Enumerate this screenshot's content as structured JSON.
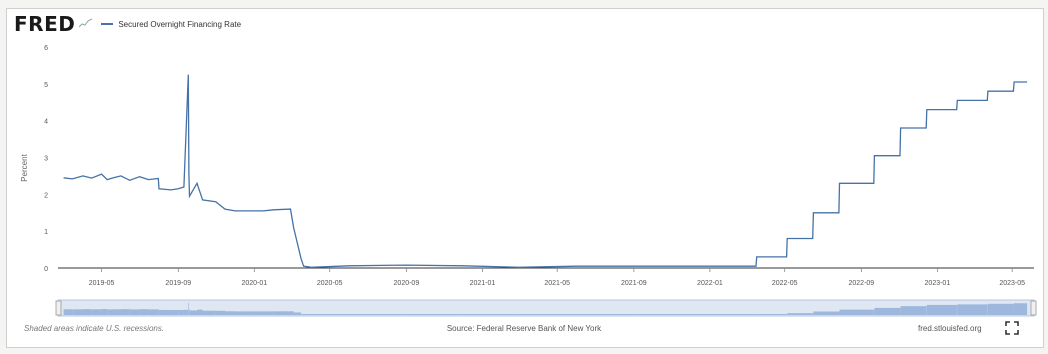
{
  "logo": {
    "text": "FRED"
  },
  "legend": {
    "series_label": "Secured Overnight Financing Rate"
  },
  "footer": {
    "recession_note": "Shaded areas indicate U.S. recessions.",
    "source": "Source: Federal Reserve Bank of New York",
    "site": "fred.stlouisfed.org"
  },
  "icons": {
    "graph": "graph-icon",
    "fullscreen": "fullscreen-icon"
  },
  "colors": {
    "series": "#4572a7",
    "navigator_fill": "#9db7dd",
    "navigator_window": "#c8d6ea"
  },
  "chart_data": {
    "type": "line",
    "ylabel": "Percent",
    "yticks": [
      0,
      1,
      2,
      3,
      4,
      5,
      6
    ],
    "ylim": [
      0,
      6
    ],
    "xticks": [
      "2019-05",
      "2019-09",
      "2020-01",
      "2020-05",
      "2020-09",
      "2021-01",
      "2021-05",
      "2021-09",
      "2022-01",
      "2022-05",
      "2022-09",
      "2023-01",
      "2023-05"
    ],
    "grid": false,
    "legend_position": "top-left",
    "series": [
      {
        "name": "Secured Overnight Financing Rate",
        "points": [
          [
            "2019-03-01",
            2.45
          ],
          [
            "2019-03-15",
            2.42
          ],
          [
            "2019-04-01",
            2.5
          ],
          [
            "2019-04-15",
            2.44
          ],
          [
            "2019-05-01",
            2.55
          ],
          [
            "2019-05-10",
            2.4
          ],
          [
            "2019-05-20",
            2.45
          ],
          [
            "2019-06-01",
            2.5
          ],
          [
            "2019-06-15",
            2.38
          ],
          [
            "2019-07-01",
            2.48
          ],
          [
            "2019-07-15",
            2.4
          ],
          [
            "2019-07-31",
            2.43
          ],
          [
            "2019-08-01",
            2.15
          ],
          [
            "2019-08-20",
            2.12
          ],
          [
            "2019-09-01",
            2.15
          ],
          [
            "2019-09-10",
            2.2
          ],
          [
            "2019-09-17",
            5.25
          ],
          [
            "2019-09-18",
            2.55
          ],
          [
            "2019-09-19",
            1.95
          ],
          [
            "2019-10-01",
            2.3
          ],
          [
            "2019-10-10",
            1.85
          ],
          [
            "2019-10-31",
            1.8
          ],
          [
            "2019-11-15",
            1.6
          ],
          [
            "2019-12-01",
            1.55
          ],
          [
            "2019-12-31",
            1.55
          ],
          [
            "2020-01-15",
            1.55
          ],
          [
            "2020-02-01",
            1.58
          ],
          [
            "2020-02-28",
            1.6
          ],
          [
            "2020-03-04",
            1.1
          ],
          [
            "2020-03-16",
            0.25
          ],
          [
            "2020-03-20",
            0.05
          ],
          [
            "2020-04-01",
            0.02
          ],
          [
            "2020-06-01",
            0.06
          ],
          [
            "2020-09-01",
            0.08
          ],
          [
            "2020-12-01",
            0.06
          ],
          [
            "2021-03-01",
            0.02
          ],
          [
            "2021-06-01",
            0.05
          ],
          [
            "2021-09-01",
            0.05
          ],
          [
            "2022-01-01",
            0.05
          ],
          [
            "2022-03-16",
            0.05
          ],
          [
            "2022-03-17",
            0.3
          ],
          [
            "2022-05-04",
            0.3
          ],
          [
            "2022-05-05",
            0.8
          ],
          [
            "2022-06-15",
            0.8
          ],
          [
            "2022-06-16",
            1.5
          ],
          [
            "2022-07-27",
            1.5
          ],
          [
            "2022-07-28",
            2.3
          ],
          [
            "2022-09-21",
            2.3
          ],
          [
            "2022-09-22",
            3.05
          ],
          [
            "2022-11-02",
            3.05
          ],
          [
            "2022-11-03",
            3.8
          ],
          [
            "2022-12-14",
            3.8
          ],
          [
            "2022-12-15",
            4.3
          ],
          [
            "2023-02-01",
            4.3
          ],
          [
            "2023-02-02",
            4.55
          ],
          [
            "2023-03-22",
            4.55
          ],
          [
            "2023-03-23",
            4.8
          ],
          [
            "2023-05-03",
            4.8
          ],
          [
            "2023-05-04",
            5.05
          ],
          [
            "2023-05-25",
            5.05
          ]
        ]
      }
    ]
  }
}
